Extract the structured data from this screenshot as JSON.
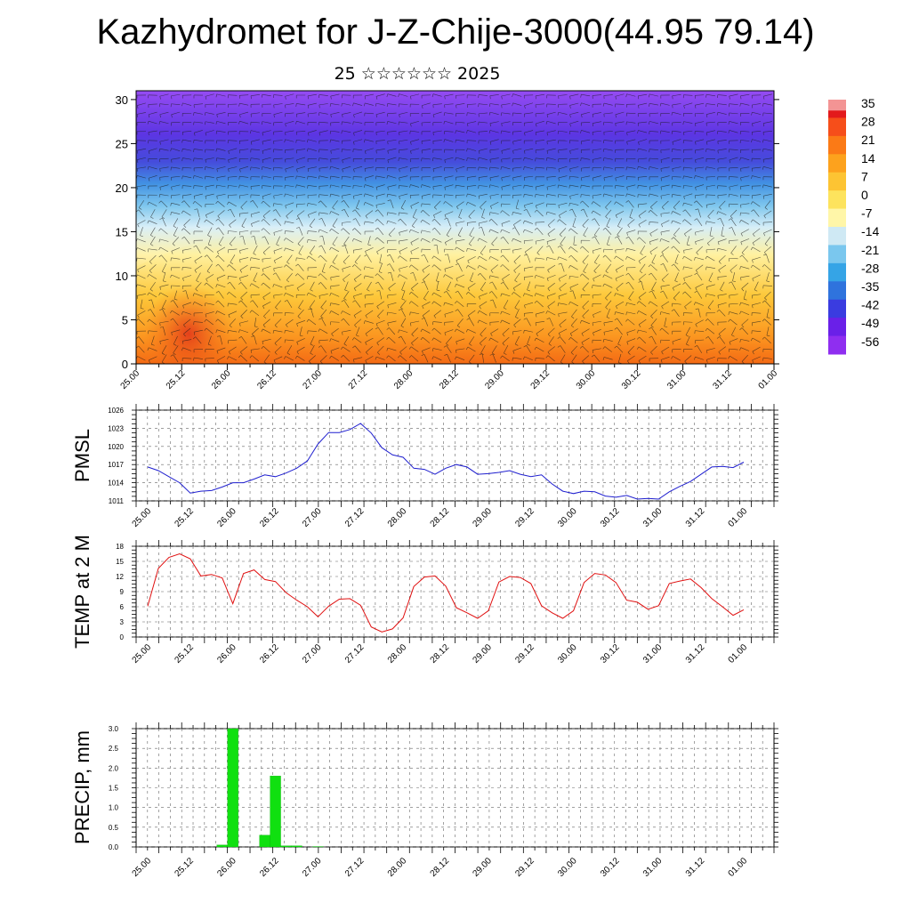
{
  "header": {
    "title": "Kazhydromet for J-Z-Chije-3000(44.95 79.14)",
    "subtitle": "25 ☆☆☆☆☆☆ 2025"
  },
  "chart_data": [
    {
      "id": "cross-section",
      "type": "heatmap",
      "title": "",
      "xlabel": "",
      "ylabel": "",
      "x_ticks": [
        "25.00",
        "25.12",
        "26.00",
        "26.12",
        "27.00",
        "27.12",
        "28.00",
        "28.12",
        "29.00",
        "29.12",
        "30.00",
        "30.12",
        "31.00",
        "31.12",
        "01.00"
      ],
      "y_ticks": [
        0,
        5,
        10,
        15,
        20,
        25,
        30
      ],
      "ylim": [
        0,
        31
      ],
      "colorbar": {
        "labels": [
          "35",
          "28",
          "21",
          "14",
          "7",
          "0",
          "-7",
          "-14",
          "-21",
          "-28",
          "-35",
          "-42",
          "-49",
          "-56"
        ],
        "colors": [
          "#e31a1c",
          "#f64e1a",
          "#fb7a16",
          "#fda21d",
          "#fdc433",
          "#fde35d",
          "#fff6a8",
          "#cfe9f4",
          "#7ac7ee",
          "#35a4e6",
          "#2f73dd",
          "#3a3ce0",
          "#6a20e8",
          "#8f2ef0"
        ]
      },
      "wind_arrows": true
    },
    {
      "id": "pmsl",
      "type": "line",
      "title": "",
      "xlabel": "",
      "ylabel": "PMSL",
      "ylim": [
        1011,
        1026
      ],
      "y_ticks": [
        1011,
        1014,
        1017,
        1020,
        1023,
        1026
      ],
      "x_ticks": [
        "25.00",
        "25.12",
        "26.00",
        "26.12",
        "27.00",
        "27.12",
        "28.00",
        "28.12",
        "29.00",
        "29.12",
        "30.00",
        "30.12",
        "31.00",
        "31.12",
        "01.00"
      ],
      "color": "#1f1fcf",
      "series": [
        {
          "values": [
            1016.6,
            1016.0,
            1015.0,
            1014.0,
            1012.3,
            1012.6,
            1012.7,
            1013.3,
            1014.0,
            1014.0,
            1014.6,
            1015.3,
            1015.0,
            1015.6,
            1016.4,
            1017.6,
            1020.4,
            1022.3,
            1022.3,
            1022.8,
            1023.8,
            1022.2,
            1019.8,
            1018.6,
            1018.2,
            1016.4,
            1016.2,
            1015.4,
            1016.4,
            1017.0,
            1016.6,
            1015.4,
            1015.5,
            1015.7,
            1016.0,
            1015.4,
            1015.0,
            1015.3,
            1013.8,
            1012.6,
            1012.2,
            1012.6,
            1012.5,
            1011.8,
            1011.6,
            1011.9,
            1011.3,
            1011.4,
            1011.3,
            1012.5,
            1013.4,
            1014.2,
            1015.4,
            1016.6,
            1016.7,
            1016.5,
            1017.4
          ]
        }
      ]
    },
    {
      "id": "temp2m",
      "type": "line",
      "title": "",
      "xlabel": "",
      "ylabel": "TEMP at 2 M",
      "ylim": [
        0,
        18
      ],
      "y_ticks": [
        0,
        3,
        6,
        9,
        12,
        15,
        18
      ],
      "x_ticks": [
        "25.00",
        "25.12",
        "26.00",
        "26.12",
        "27.00",
        "27.12",
        "28.00",
        "28.12",
        "29.00",
        "29.12",
        "30.00",
        "30.12",
        "31.00",
        "31.12",
        "01.00"
      ],
      "color": "#e01010",
      "series": [
        {
          "values": [
            6.1,
            13.6,
            15.8,
            16.5,
            15.5,
            12.1,
            12.4,
            11.7,
            6.6,
            12.6,
            13.3,
            11.4,
            11.0,
            8.8,
            7.3,
            6.0,
            4.0,
            6.1,
            7.5,
            7.6,
            6.3,
            2.0,
            1.0,
            1.6,
            3.8,
            10.0,
            11.9,
            12.1,
            10.1,
            5.8,
            4.8,
            3.7,
            5.2,
            10.9,
            12.0,
            11.8,
            10.6,
            6.2,
            4.8,
            3.7,
            5.2,
            10.8,
            12.6,
            12.3,
            10.8,
            7.3,
            6.9,
            5.5,
            6.2,
            10.6,
            11.1,
            11.5,
            9.8,
            7.6,
            6.0,
            4.3,
            5.4
          ]
        }
      ]
    },
    {
      "id": "precip",
      "type": "bar",
      "title": "",
      "xlabel": "",
      "ylabel": "PRECIP, mm",
      "ylim": [
        0,
        3.0
      ],
      "y_ticks": [
        "0.0",
        "0.5",
        "1.0",
        "1.5",
        "2.0",
        "2.5",
        "3.0"
      ],
      "x_ticks": [
        "25.00",
        "25.12",
        "26.00",
        "26.12",
        "27.00",
        "27.12",
        "28.00",
        "28.12",
        "29.00",
        "29.12",
        "30.00",
        "30.12",
        "31.00",
        "31.12",
        "01.00"
      ],
      "color": "#10e010",
      "series": [
        {
          "values": [
            0,
            0,
            0,
            0,
            0,
            0,
            0,
            0.05,
            3.0,
            0,
            0,
            0.3,
            1.8,
            0.03,
            0.03,
            0,
            0.01,
            0,
            0,
            0,
            0,
            0,
            0,
            0,
            0,
            0,
            0,
            0,
            0,
            0,
            0,
            0,
            0,
            0,
            0,
            0,
            0,
            0,
            0,
            0,
            0,
            0,
            0,
            0,
            0,
            0,
            0,
            0,
            0,
            0,
            0,
            0,
            0,
            0,
            0,
            0,
            0
          ]
        }
      ]
    }
  ]
}
